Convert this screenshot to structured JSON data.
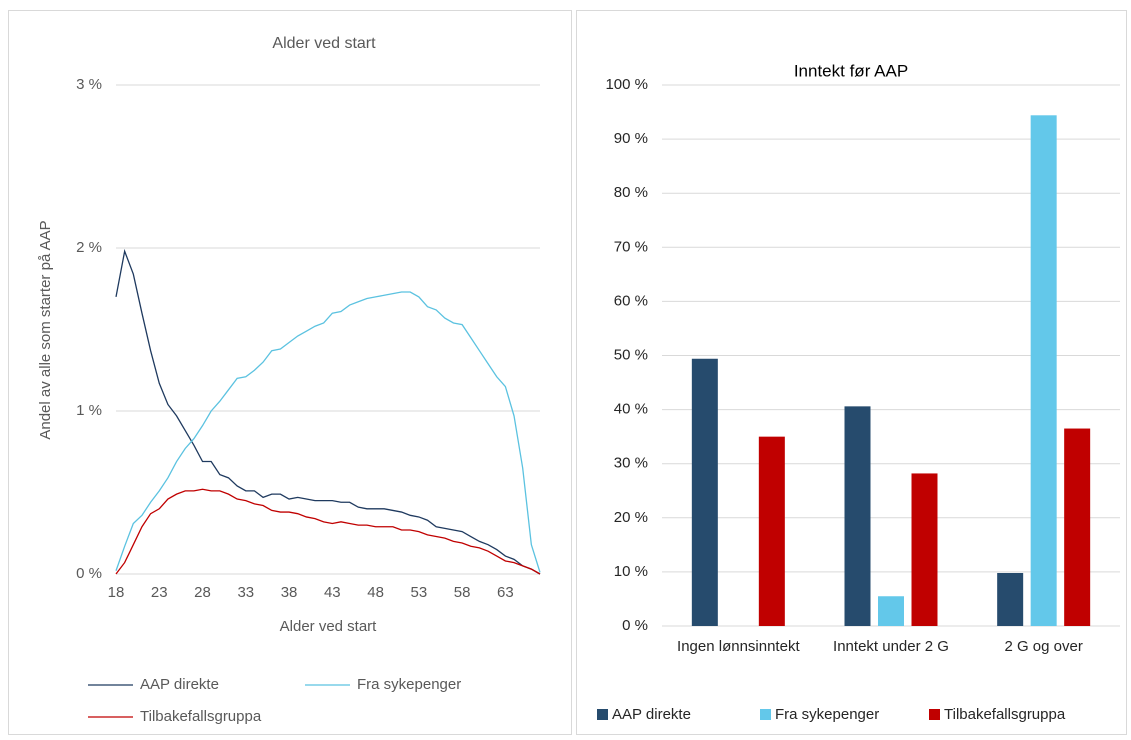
{
  "chart_data": [
    {
      "type": "line",
      "title": "Alder ved start",
      "xlabel": "Alder ved start",
      "ylabel": "Andel  av alle som starter på AAP",
      "x": [
        18,
        19,
        20,
        21,
        22,
        23,
        24,
        25,
        26,
        27,
        28,
        29,
        30,
        31,
        32,
        33,
        34,
        35,
        36,
        37,
        38,
        39,
        40,
        41,
        42,
        43,
        44,
        45,
        46,
        47,
        48,
        49,
        50,
        51,
        52,
        53,
        54,
        55,
        56,
        57,
        58,
        59,
        60,
        61,
        62,
        63,
        64,
        65,
        66,
        67
      ],
      "series": [
        {
          "name": "AAP direkte",
          "color": "#1f3a5f",
          "values": [
            1.7,
            1.98,
            1.84,
            1.6,
            1.37,
            1.17,
            1.04,
            0.97,
            0.88,
            0.79,
            0.69,
            0.69,
            0.61,
            0.59,
            0.54,
            0.51,
            0.51,
            0.47,
            0.49,
            0.49,
            0.46,
            0.47,
            0.46,
            0.45,
            0.45,
            0.45,
            0.44,
            0.44,
            0.41,
            0.4,
            0.4,
            0.4,
            0.39,
            0.38,
            0.36,
            0.35,
            0.33,
            0.29,
            0.28,
            0.27,
            0.26,
            0.23,
            0.2,
            0.18,
            0.15,
            0.11,
            0.09,
            0.05,
            0.03,
            0.0
          ]
        },
        {
          "name": "Fra sykepenger",
          "color": "#5bc2e0",
          "values": [
            0.02,
            0.17,
            0.31,
            0.36,
            0.44,
            0.51,
            0.59,
            0.69,
            0.77,
            0.83,
            0.91,
            1.0,
            1.06,
            1.13,
            1.2,
            1.21,
            1.25,
            1.3,
            1.37,
            1.38,
            1.42,
            1.46,
            1.49,
            1.52,
            1.54,
            1.6,
            1.61,
            1.65,
            1.67,
            1.69,
            1.7,
            1.71,
            1.72,
            1.73,
            1.73,
            1.7,
            1.64,
            1.62,
            1.57,
            1.54,
            1.53,
            1.45,
            1.37,
            1.29,
            1.21,
            1.15,
            0.97,
            0.65,
            0.18,
            0.01
          ]
        },
        {
          "name": "Tilbakefallsgruppa",
          "color": "#c00000",
          "values": [
            0.0,
            0.07,
            0.18,
            0.29,
            0.37,
            0.4,
            0.46,
            0.49,
            0.51,
            0.51,
            0.52,
            0.51,
            0.51,
            0.49,
            0.46,
            0.45,
            0.43,
            0.42,
            0.39,
            0.38,
            0.38,
            0.37,
            0.35,
            0.34,
            0.32,
            0.31,
            0.32,
            0.31,
            0.3,
            0.3,
            0.29,
            0.29,
            0.29,
            0.27,
            0.27,
            0.26,
            0.24,
            0.23,
            0.22,
            0.2,
            0.19,
            0.17,
            0.16,
            0.14,
            0.11,
            0.08,
            0.07,
            0.05,
            0.03,
            0.0
          ]
        }
      ],
      "xlim": [
        18,
        67
      ],
      "xticks": [
        18,
        23,
        28,
        33,
        38,
        43,
        48,
        53,
        58,
        63
      ],
      "ylim": [
        0,
        3
      ],
      "yticks": [
        {
          "value": 0,
          "label": "0 %"
        },
        {
          "value": 1,
          "label": "1 %"
        },
        {
          "value": 2,
          "label": "2 %"
        },
        {
          "value": 3,
          "label": "3 %"
        }
      ],
      "grid": true,
      "legend": "bottom"
    },
    {
      "type": "bar",
      "title": "Inntekt før AAP",
      "categories": [
        "Ingen lønnsinntekt",
        "Inntekt under 2 G",
        "2 G og over"
      ],
      "series": [
        {
          "name": "AAP direkte",
          "color": "#264b6d",
          "values": [
            49.4,
            40.6,
            9.8
          ]
        },
        {
          "name": "Fra sykepenger",
          "color": "#63c8ea",
          "values": [
            0,
            5.5,
            94.4
          ]
        },
        {
          "name": "Tilbakefallsgruppa",
          "color": "#c00000",
          "values": [
            35.0,
            28.2,
            36.5
          ]
        }
      ],
      "ylim": [
        0,
        100
      ],
      "yticks": [
        {
          "value": 0,
          "label": "0 %"
        },
        {
          "value": 10,
          "label": "10 %"
        },
        {
          "value": 20,
          "label": "20 %"
        },
        {
          "value": 30,
          "label": "30 %"
        },
        {
          "value": 40,
          "label": "40 %"
        },
        {
          "value": 50,
          "label": "50 %"
        },
        {
          "value": 60,
          "label": "60 %"
        },
        {
          "value": 70,
          "label": "70 %"
        },
        {
          "value": 80,
          "label": "80 %"
        },
        {
          "value": 90,
          "label": "90 %"
        },
        {
          "value": 100,
          "label": "100 %"
        }
      ],
      "grid": true,
      "legend": "bottom"
    }
  ]
}
